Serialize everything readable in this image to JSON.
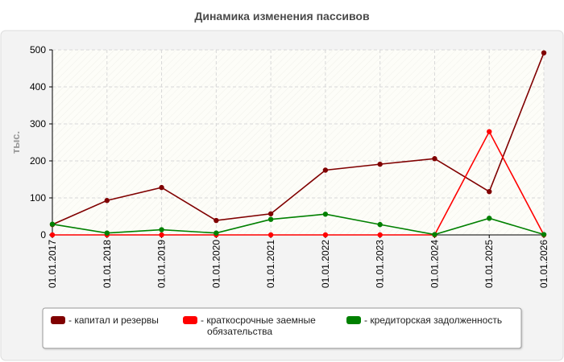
{
  "chart_data": {
    "type": "line",
    "title": "Динамика изменения пассивов",
    "ylabel": "тыс.",
    "xlabel": "",
    "categories": [
      "01.01.2017",
      "01.01.2018",
      "01.01.2019",
      "01.01.2020",
      "01.01.2021",
      "01.01.2022",
      "01.01.2023",
      "01.01.2024",
      "01.01.2025",
      "01.01.2026"
    ],
    "ylim": [
      0,
      500
    ],
    "yticks": [
      0,
      100,
      200,
      300,
      400,
      500
    ],
    "grid": true,
    "legend_position": "bottom",
    "series": [
      {
        "name": "капитал и резервы",
        "color": "#800000",
        "values": [
          28,
          93,
          128,
          39,
          57,
          175,
          191,
          206,
          117,
          492
        ]
      },
      {
        "name": "краткосрочные заемные обязательства",
        "color": "#ff0000",
        "values": [
          0,
          0,
          0,
          0,
          0,
          0,
          0,
          0,
          279,
          0
        ]
      },
      {
        "name": "кредиторская задолженность",
        "color": "#008000",
        "values": [
          29,
          5,
          14,
          5,
          42,
          56,
          28,
          1,
          45,
          1
        ]
      }
    ]
  }
}
